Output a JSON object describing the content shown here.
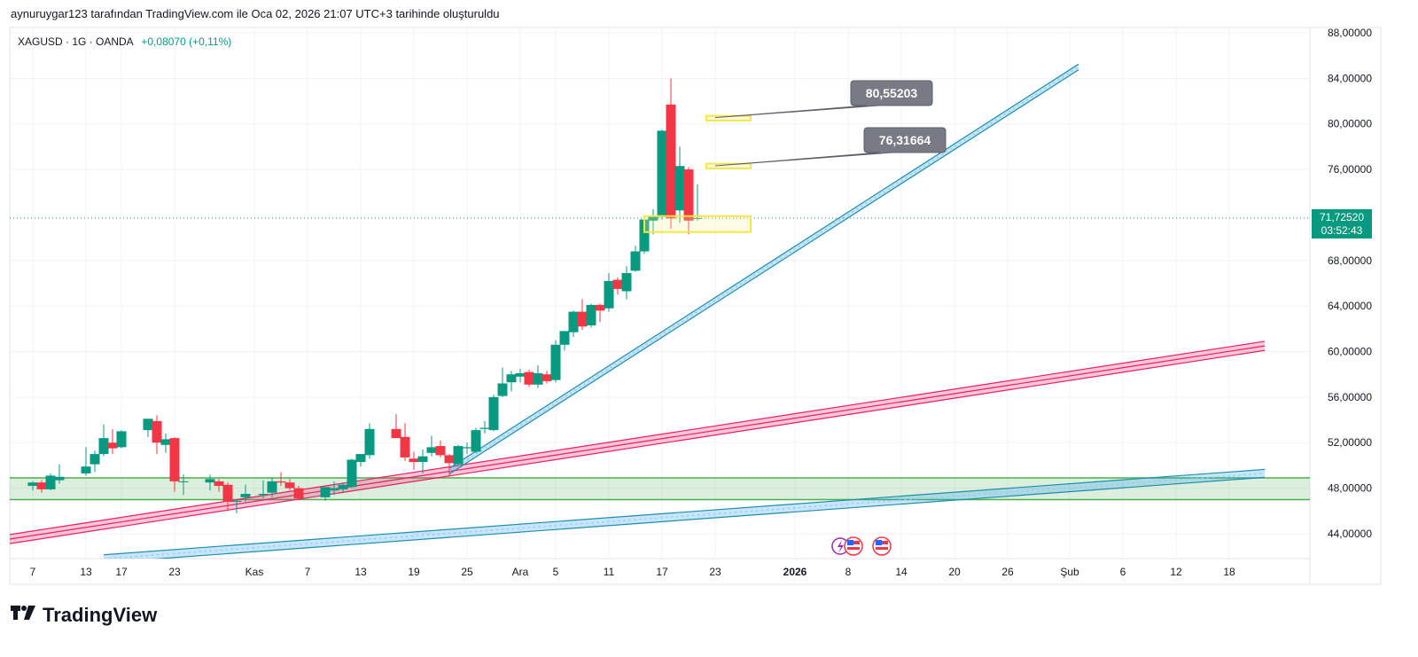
{
  "header": {
    "created_by": "aynuruygar123 tarafından TradingView.com ile Oca 02, 2026 21:07 UTC+3 tarihinde oluşturuldu"
  },
  "legend": {
    "symbol": "XAGUSD · 1G · OANDA",
    "change": "+0,08070 (+0,11%)"
  },
  "price_tag": {
    "price": "71,72520",
    "countdown": "03:52:43",
    "color": "#089981"
  },
  "callouts": [
    {
      "label": "80,55203",
      "level": 80.55203
    },
    {
      "label": "76,31664",
      "level": 76.31664
    }
  ],
  "logo": {
    "mark": "17",
    "text": "TradingView"
  },
  "colors": {
    "up": "#089981",
    "down": "#f23645",
    "zone_green": "#4caf50",
    "pink": "#e91e63",
    "blue": "#2196f3",
    "teal": "#1e8fa8",
    "yellow": "#f5e642"
  },
  "chart_data": {
    "type": "candlestick",
    "title": "XAGUSD · 1G · OANDA",
    "ylim": [
      42,
      88
    ],
    "y_ticks": [
      "88,00000",
      "84,00000",
      "80,00000",
      "76,00000",
      "68,00000",
      "64,00000",
      "60,00000",
      "56,00000",
      "52,00000",
      "48,00000",
      "44,00000"
    ],
    "y_tick_values": [
      88,
      84,
      80,
      76,
      68,
      64,
      60,
      56,
      52,
      48,
      44
    ],
    "x_ticks": [
      {
        "label": "7",
        "day": 7
      },
      {
        "label": "13",
        "day": 13
      },
      {
        "label": "17",
        "day": 17
      },
      {
        "label": "23",
        "day": 23
      },
      {
        "label": "Kas",
        "day": 32
      },
      {
        "label": "7",
        "day": 38
      },
      {
        "label": "13",
        "day": 44
      },
      {
        "label": "19",
        "day": 50
      },
      {
        "label": "25",
        "day": 56
      },
      {
        "label": "Ara",
        "day": 62
      },
      {
        "label": "5",
        "day": 66
      },
      {
        "label": "11",
        "day": 72
      },
      {
        "label": "17",
        "day": 78
      },
      {
        "label": "23",
        "day": 84
      },
      {
        "label": "2026",
        "day": 93,
        "bold": true
      },
      {
        "label": "8",
        "day": 99
      },
      {
        "label": "14",
        "day": 105
      },
      {
        "label": "20",
        "day": 111
      },
      {
        "label": "26",
        "day": 117
      },
      {
        "label": "Şub",
        "day": 124
      },
      {
        "label": "6",
        "day": 130
      },
      {
        "label": "12",
        "day": 136
      },
      {
        "label": "18",
        "day": 142
      }
    ],
    "candles": [
      {
        "d": 7,
        "o": 48.2,
        "h": 48.6,
        "l": 47.8,
        "c": 48.5
      },
      {
        "d": 8,
        "o": 48.5,
        "h": 48.7,
        "l": 47.6,
        "c": 47.9
      },
      {
        "d": 9,
        "o": 47.9,
        "h": 49.3,
        "l": 47.8,
        "c": 49.1
      },
      {
        "d": 10,
        "o": 48.7,
        "h": 50.1,
        "l": 48.4,
        "c": 49.0
      },
      {
        "d": 13,
        "o": 49.3,
        "h": 51.6,
        "l": 49.1,
        "c": 49.9
      },
      {
        "d": 14,
        "o": 50.1,
        "h": 51.3,
        "l": 49.4,
        "c": 51.0
      },
      {
        "d": 15,
        "o": 51.0,
        "h": 53.6,
        "l": 50.8,
        "c": 52.4
      },
      {
        "d": 16,
        "o": 52.0,
        "h": 53.2,
        "l": 51.0,
        "c": 51.5
      },
      {
        "d": 17,
        "o": 51.6,
        "h": 53.1,
        "l": 51.5,
        "c": 53.0
      },
      {
        "d": 20,
        "o": 53.1,
        "h": 54.0,
        "l": 52.5,
        "c": 54.1
      },
      {
        "d": 21,
        "o": 53.9,
        "h": 54.4,
        "l": 51.0,
        "c": 52.0
      },
      {
        "d": 22,
        "o": 51.8,
        "h": 52.8,
        "l": 51.1,
        "c": 52.3
      },
      {
        "d": 23,
        "o": 52.4,
        "h": 52.5,
        "l": 47.7,
        "c": 48.6
      },
      {
        "d": 24,
        "o": 48.6,
        "h": 49.2,
        "l": 47.4,
        "c": 48.6
      },
      {
        "d": 27,
        "o": 48.5,
        "h": 49.2,
        "l": 47.8,
        "c": 48.8
      },
      {
        "d": 28,
        "o": 48.6,
        "h": 48.8,
        "l": 47.7,
        "c": 48.2
      },
      {
        "d": 29,
        "o": 48.3,
        "h": 48.5,
        "l": 46.1,
        "c": 46.8
      },
      {
        "d": 30,
        "o": 46.8,
        "h": 47.0,
        "l": 45.8,
        "c": 46.9
      },
      {
        "d": 31,
        "o": 47.2,
        "h": 48.3,
        "l": 46.7,
        "c": 47.5
      },
      {
        "d": 33,
        "o": 47.4,
        "h": 48.7,
        "l": 47.1,
        "c": 47.5
      },
      {
        "d": 34,
        "o": 47.6,
        "h": 48.9,
        "l": 47.2,
        "c": 48.6
      },
      {
        "d": 35,
        "o": 48.6,
        "h": 49.4,
        "l": 48.2,
        "c": 48.5
      },
      {
        "d": 36,
        "o": 48.5,
        "h": 48.8,
        "l": 47.8,
        "c": 48.0
      },
      {
        "d": 37,
        "o": 48.0,
        "h": 48.2,
        "l": 47.0,
        "c": 47.1
      },
      {
        "d": 40,
        "o": 47.2,
        "h": 48.1,
        "l": 46.9,
        "c": 48.1
      },
      {
        "d": 41,
        "o": 47.8,
        "h": 48.6,
        "l": 47.4,
        "c": 48.0
      },
      {
        "d": 42,
        "o": 47.9,
        "h": 48.5,
        "l": 47.6,
        "c": 48.3
      },
      {
        "d": 43,
        "o": 48.1,
        "h": 50.6,
        "l": 48.0,
        "c": 50.5
      },
      {
        "d": 44,
        "o": 50.3,
        "h": 51.0,
        "l": 49.9,
        "c": 51.0
      },
      {
        "d": 45,
        "o": 50.9,
        "h": 53.7,
        "l": 50.6,
        "c": 53.2
      },
      {
        "d": 48,
        "o": 53.2,
        "h": 54.5,
        "l": 52.6,
        "c": 52.4
      },
      {
        "d": 49,
        "o": 52.5,
        "h": 53.7,
        "l": 50.4,
        "c": 50.7
      },
      {
        "d": 50,
        "o": 50.6,
        "h": 51.2,
        "l": 49.6,
        "c": 50.3
      },
      {
        "d": 51,
        "o": 50.3,
        "h": 51.4,
        "l": 49.3,
        "c": 50.8
      },
      {
        "d": 52,
        "o": 51.1,
        "h": 52.6,
        "l": 50.8,
        "c": 51.6
      },
      {
        "d": 53,
        "o": 51.7,
        "h": 52.2,
        "l": 50.7,
        "c": 50.9
      },
      {
        "d": 54,
        "o": 50.9,
        "h": 51.0,
        "l": 49.0,
        "c": 50.2
      },
      {
        "d": 55,
        "o": 50.1,
        "h": 51.8,
        "l": 49.9,
        "c": 51.7
      },
      {
        "d": 56,
        "o": 51.5,
        "h": 52.0,
        "l": 51.0,
        "c": 51.6
      },
      {
        "d": 57,
        "o": 51.2,
        "h": 53.3,
        "l": 51.1,
        "c": 53.1
      },
      {
        "d": 58,
        "o": 53.2,
        "h": 53.9,
        "l": 52.8,
        "c": 53.3
      },
      {
        "d": 59,
        "o": 53.1,
        "h": 56.2,
        "l": 53.0,
        "c": 56.0
      },
      {
        "d": 60,
        "o": 56.1,
        "h": 58.6,
        "l": 56.0,
        "c": 57.2
      },
      {
        "d": 61,
        "o": 57.3,
        "h": 58.3,
        "l": 56.5,
        "c": 58.0
      },
      {
        "d": 62,
        "o": 57.8,
        "h": 58.5,
        "l": 57.3,
        "c": 58.1
      },
      {
        "d": 63,
        "o": 58.2,
        "h": 58.4,
        "l": 56.9,
        "c": 57.1
      },
      {
        "d": 64,
        "o": 57.1,
        "h": 58.8,
        "l": 56.8,
        "c": 58.1
      },
      {
        "d": 65,
        "o": 58.0,
        "h": 58.3,
        "l": 57.2,
        "c": 57.4
      },
      {
        "d": 66,
        "o": 57.5,
        "h": 61.0,
        "l": 57.3,
        "c": 60.6
      },
      {
        "d": 67,
        "o": 60.6,
        "h": 61.8,
        "l": 60.1,
        "c": 61.8
      },
      {
        "d": 68,
        "o": 61.7,
        "h": 63.6,
        "l": 61.3,
        "c": 63.5
      },
      {
        "d": 69,
        "o": 63.5,
        "h": 64.6,
        "l": 61.9,
        "c": 62.2
      },
      {
        "d": 70,
        "o": 62.3,
        "h": 64.2,
        "l": 62.1,
        "c": 64.1
      },
      {
        "d": 71,
        "o": 64.1,
        "h": 64.2,
        "l": 62.6,
        "c": 63.6
      },
      {
        "d": 72,
        "o": 63.8,
        "h": 66.9,
        "l": 63.5,
        "c": 66.2
      },
      {
        "d": 73,
        "o": 66.3,
        "h": 66.5,
        "l": 65.0,
        "c": 65.5
      },
      {
        "d": 74,
        "o": 65.3,
        "h": 67.5,
        "l": 64.6,
        "c": 66.9
      },
      {
        "d": 75,
        "o": 67.1,
        "h": 69.3,
        "l": 67.0,
        "c": 68.8
      },
      {
        "d": 76,
        "o": 68.8,
        "h": 71.8,
        "l": 68.6,
        "c": 71.6
      },
      {
        "d": 77,
        "o": 71.5,
        "h": 72.5,
        "l": 70.3,
        "c": 71.9
      },
      {
        "d": 78,
        "o": 71.8,
        "h": 79.5,
        "l": 71.6,
        "c": 79.4
      },
      {
        "d": 79,
        "o": 81.7,
        "h": 84.0,
        "l": 70.8,
        "c": 71.7
      },
      {
        "d": 80,
        "o": 72.4,
        "h": 78.0,
        "l": 71.3,
        "c": 76.3
      },
      {
        "d": 81,
        "o": 76.0,
        "h": 76.2,
        "l": 70.3,
        "c": 71.5
      },
      {
        "d": 82,
        "o": 71.7,
        "h": 74.7,
        "l": 71.5,
        "c": 71.73
      }
    ],
    "zones": [
      {
        "name": "green-support-zone",
        "top": 48.9,
        "bottom": 47.0
      }
    ],
    "channels": [
      {
        "name": "pink-channel",
        "from": {
          "d": 0,
          "p": 43.0
        },
        "to": {
          "d": 146,
          "p": 60.5
        },
        "width": 0.8
      },
      {
        "name": "blue-lower-channel",
        "from": {
          "d": 15,
          "p": 41.8
        },
        "to": {
          "d": 146,
          "p": 49.3
        },
        "width": 0.7
      },
      {
        "name": "blue-steep-trendline",
        "from": {
          "d": 54,
          "p": 49.5
        },
        "to": {
          "d": 125,
          "p": 85.0
        },
        "width": 0.5
      }
    ],
    "highlight_boxes": [
      {
        "name": "yellow-box-low",
        "d0": 76,
        "d1": 88,
        "top": 71.9,
        "bottom": 70.5
      },
      {
        "name": "yellow-box-76",
        "d0": 83,
        "d1": 88,
        "top": 76.5,
        "bottom": 76.1
      },
      {
        "name": "yellow-box-80",
        "d0": 83,
        "d1": 88,
        "top": 80.7,
        "bottom": 80.3
      }
    ],
    "current_price": 71.7252
  }
}
